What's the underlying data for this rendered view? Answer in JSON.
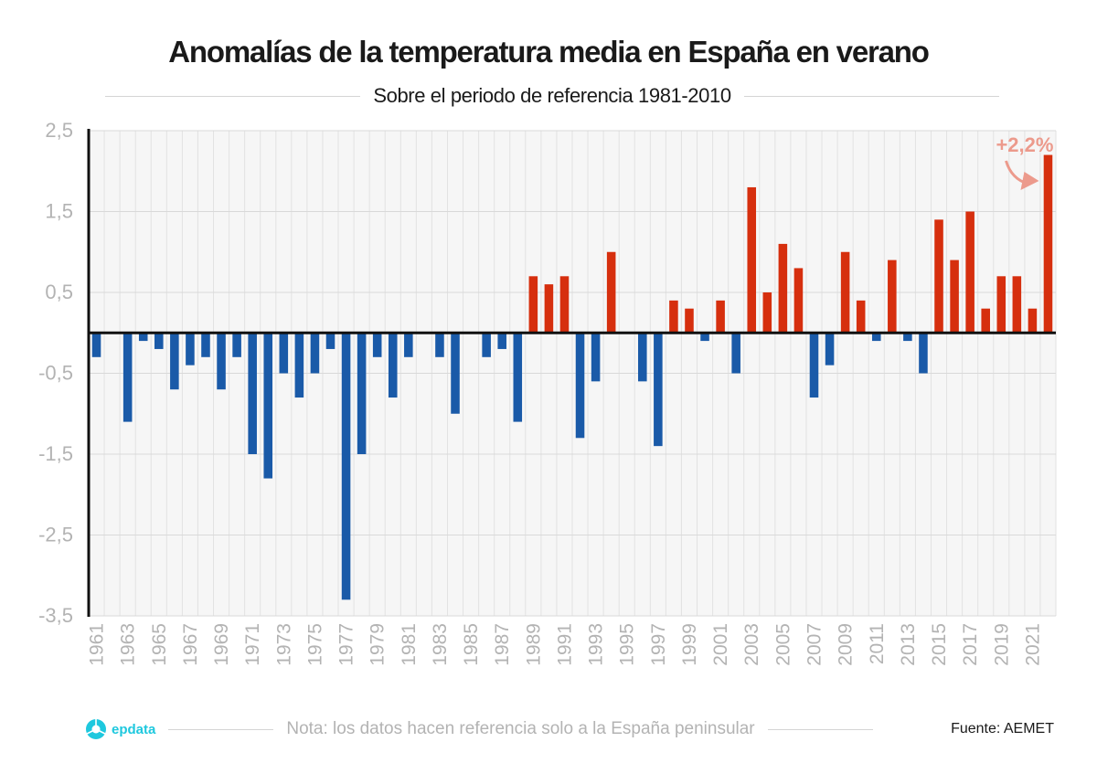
{
  "chart_data": {
    "type": "bar",
    "title": "Anomalías de la temperatura media en España en verano",
    "subtitle": "Sobre el periodo de referencia 1981-2010",
    "xlabel": "",
    "ylabel": "",
    "ylim": [
      -3.5,
      2.5
    ],
    "yticks": [
      2.5,
      1.5,
      0.5,
      -0.5,
      -1.5,
      -2.5,
      -3.5
    ],
    "ytick_labels": [
      "2,5",
      "1,5",
      "0,5",
      "-0,5",
      "-1,5",
      "-2,5",
      "-3,5"
    ],
    "grid": true,
    "categories": [
      1961,
      1962,
      1963,
      1964,
      1965,
      1966,
      1967,
      1968,
      1969,
      1970,
      1971,
      1972,
      1973,
      1974,
      1975,
      1976,
      1977,
      1978,
      1979,
      1980,
      1981,
      1982,
      1983,
      1984,
      1985,
      1986,
      1987,
      1988,
      1989,
      1990,
      1991,
      1992,
      1993,
      1994,
      1995,
      1996,
      1997,
      1998,
      1999,
      2000,
      2001,
      2002,
      2003,
      2004,
      2005,
      2006,
      2007,
      2008,
      2009,
      2010,
      2011,
      2012,
      2013,
      2014,
      2015,
      2016,
      2017,
      2018,
      2019,
      2020,
      2021,
      2022
    ],
    "values": [
      -0.3,
      0,
      -1.1,
      -0.1,
      -0.2,
      -0.7,
      -0.4,
      -0.3,
      -0.7,
      -0.3,
      -1.5,
      -1.8,
      -0.5,
      -0.8,
      -0.5,
      -0.2,
      -3.3,
      -1.5,
      -0.3,
      -0.8,
      -0.3,
      0,
      -0.3,
      -1.0,
      0,
      -0.3,
      -0.2,
      -1.1,
      0.7,
      0.6,
      0.7,
      -1.3,
      -0.6,
      1.0,
      0,
      -0.6,
      -1.4,
      0.4,
      0.3,
      -0.1,
      0.4,
      -0.5,
      1.8,
      0.5,
      1.1,
      0.8,
      -0.8,
      -0.4,
      1.0,
      0.4,
      -0.1,
      0.9,
      -0.1,
      -0.5,
      1.4,
      0.9,
      1.5,
      0.3,
      0.7,
      0.7,
      0.3,
      2.2
    ],
    "xtick_labels": [
      "1961",
      "1963",
      "1965",
      "1967",
      "1969",
      "1971",
      "1973",
      "1975",
      "1977",
      "1979",
      "1981",
      "1983",
      "1985",
      "1987",
      "1989",
      "1991",
      "1993",
      "1995",
      "1997",
      "1999",
      "2001",
      "2003",
      "2005",
      "2007",
      "2009",
      "2011",
      "2013",
      "2015",
      "2017",
      "2019",
      "2021"
    ],
    "annotation": {
      "text": "+2,2%",
      "target_year": 2022
    },
    "colors": {
      "positive": "#d62f0e",
      "negative": "#1a5aa8",
      "annotation": "#ec9a8c",
      "plot_bg": "#f6f6f6",
      "grid": "#e2e2e2",
      "tick_label": "#b3b3b3"
    }
  },
  "footer": {
    "logo_text": "epdata",
    "note": "Nota: los datos hacen referencia solo a la España peninsular",
    "source": "Fuente: AEMET"
  }
}
